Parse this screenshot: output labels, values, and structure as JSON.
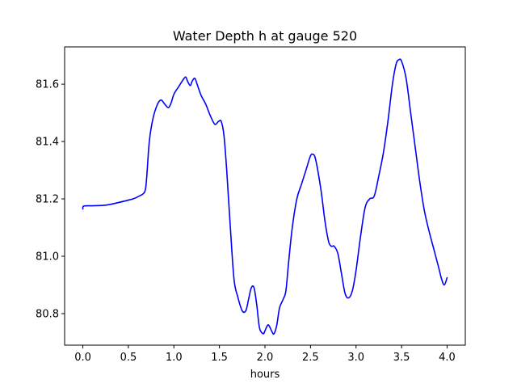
{
  "chart_data": {
    "type": "line",
    "title": "Water Depth h at gauge 520",
    "xlabel": "hours",
    "ylabel": "",
    "xlim": [
      -0.2,
      4.2
    ],
    "ylim": [
      80.69,
      81.73
    ],
    "xticks": [
      0.0,
      0.5,
      1.0,
      1.5,
      2.0,
      2.5,
      3.0,
      3.5,
      4.0
    ],
    "xtick_labels": [
      "0.0",
      "0.5",
      "1.0",
      "1.5",
      "2.0",
      "2.5",
      "3.0",
      "3.5",
      "4.0"
    ],
    "yticks": [
      80.8,
      81.0,
      81.2,
      81.4,
      81.6
    ],
    "ytick_labels": [
      "80.8",
      "81.0",
      "81.2",
      "81.4",
      "81.6"
    ],
    "grid": false,
    "series": [
      {
        "color": "#0000ff",
        "x": [
          0.0,
          0.01,
          0.1,
          0.25,
          0.4,
          0.55,
          0.62,
          0.68,
          0.7,
          0.73,
          0.77,
          0.82,
          0.86,
          0.9,
          0.94,
          0.97,
          1.0,
          1.05,
          1.1,
          1.13,
          1.15,
          1.18,
          1.2,
          1.23,
          1.26,
          1.3,
          1.35,
          1.4,
          1.45,
          1.49,
          1.52,
          1.55,
          1.58,
          1.62,
          1.66,
          1.7,
          1.75,
          1.79,
          1.82,
          1.85,
          1.88,
          1.91,
          1.94,
          1.98,
          2.0,
          2.03,
          2.05,
          2.08,
          2.1,
          2.13,
          2.16,
          2.2,
          2.23,
          2.26,
          2.3,
          2.35,
          2.4,
          2.45,
          2.5,
          2.53,
          2.55,
          2.58,
          2.62,
          2.66,
          2.7,
          2.73,
          2.76,
          2.8,
          2.84,
          2.88,
          2.92,
          2.96,
          3.0,
          3.05,
          3.1,
          3.15,
          3.2,
          3.25,
          3.3,
          3.35,
          3.4,
          3.44,
          3.47,
          3.5,
          3.55,
          3.6,
          3.65,
          3.7,
          3.75,
          3.8,
          3.85,
          3.9,
          3.94,
          3.97,
          4.0
        ],
        "y": [
          81.165,
          81.175,
          81.176,
          81.178,
          81.188,
          81.2,
          81.21,
          81.225,
          81.27,
          81.4,
          81.48,
          81.53,
          81.545,
          81.53,
          81.518,
          81.535,
          81.565,
          81.59,
          81.615,
          81.625,
          81.61,
          81.595,
          81.61,
          81.62,
          81.595,
          81.56,
          81.53,
          81.49,
          81.46,
          81.47,
          81.47,
          81.42,
          81.3,
          81.1,
          80.92,
          80.86,
          80.81,
          80.81,
          80.85,
          80.89,
          80.89,
          80.83,
          80.75,
          80.73,
          80.74,
          80.76,
          80.755,
          80.735,
          80.73,
          80.76,
          80.82,
          80.85,
          80.88,
          80.98,
          81.1,
          81.2,
          81.25,
          81.3,
          81.35,
          81.355,
          81.345,
          81.3,
          81.22,
          81.12,
          81.05,
          81.035,
          81.035,
          81.01,
          80.94,
          80.87,
          80.855,
          80.88,
          80.95,
          81.07,
          81.17,
          81.2,
          81.21,
          81.28,
          81.36,
          81.47,
          81.6,
          81.67,
          81.685,
          81.68,
          81.62,
          81.5,
          81.38,
          81.26,
          81.16,
          81.09,
          81.03,
          80.97,
          80.92,
          80.9,
          80.925
        ]
      }
    ]
  }
}
